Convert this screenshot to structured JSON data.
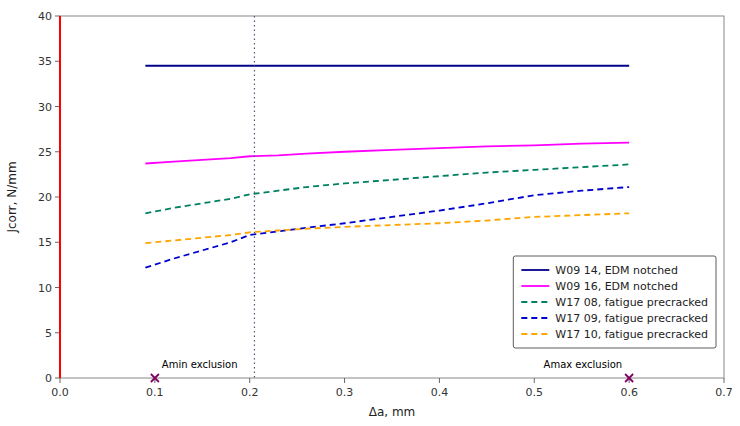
{
  "chart_data": {
    "type": "line",
    "xlabel": "Δa, mm",
    "ylabel": "Jcorr, N/mm",
    "xlim": [
      0,
      0.7
    ],
    "ylim": [
      0,
      40
    ],
    "xticks": [
      {
        "value": 0,
        "label": "0.0"
      },
      0.1,
      0.2,
      0.3,
      0.4,
      0.5,
      0.6,
      0.7
    ],
    "yticks": [
      0,
      5,
      10,
      15,
      20,
      25,
      30,
      35,
      40
    ],
    "grid": false,
    "legend": "lower right",
    "series": [
      {
        "name": "W09 14, EDM notched",
        "color": "#00008B",
        "line_style": "solid",
        "x": [
          0.09,
          0.15,
          0.2,
          0.25,
          0.3,
          0.35,
          0.4,
          0.45,
          0.5,
          0.55,
          0.6
        ],
        "values": [
          34.5,
          34.5,
          34.5,
          34.5,
          34.5,
          34.5,
          34.5,
          34.5,
          34.5,
          34.5,
          34.5
        ]
      },
      {
        "name": "W09 16, EDM notched",
        "color": "#FF00FF",
        "line_style": "solid",
        "x": [
          0.09,
          0.12,
          0.15,
          0.18,
          0.2,
          0.23,
          0.26,
          0.3,
          0.35,
          0.4,
          0.45,
          0.5,
          0.55,
          0.6
        ],
        "values": [
          23.7,
          23.9,
          24.1,
          24.3,
          24.5,
          24.6,
          24.8,
          25.0,
          25.2,
          25.4,
          25.6,
          25.7,
          25.9,
          26.0
        ]
      },
      {
        "name": "W17 08, fatigue precracked",
        "color": "#008060",
        "line_style": "dashed",
        "x": [
          0.09,
          0.12,
          0.15,
          0.18,
          0.2,
          0.23,
          0.26,
          0.3,
          0.35,
          0.4,
          0.45,
          0.5,
          0.55,
          0.6
        ],
        "values": [
          18.2,
          18.8,
          19.3,
          19.8,
          20.3,
          20.7,
          21.1,
          21.5,
          21.9,
          22.3,
          22.7,
          23.0,
          23.3,
          23.6
        ]
      },
      {
        "name": "W17 09, fatigue precracked",
        "color": "#0000CD",
        "line_style": "dashed",
        "x": [
          0.09,
          0.12,
          0.15,
          0.18,
          0.2,
          0.23,
          0.26,
          0.3,
          0.35,
          0.4,
          0.45,
          0.5,
          0.55,
          0.6
        ],
        "values": [
          12.2,
          13.2,
          14.1,
          15.0,
          15.8,
          16.2,
          16.6,
          17.1,
          17.8,
          18.5,
          19.3,
          20.2,
          20.7,
          21.1
        ]
      },
      {
        "name": "W17 10, fatigue precracked",
        "color": "#FFA500",
        "line_style": "dashed",
        "x": [
          0.09,
          0.12,
          0.15,
          0.18,
          0.2,
          0.23,
          0.26,
          0.3,
          0.35,
          0.4,
          0.45,
          0.5,
          0.55,
          0.6
        ],
        "values": [
          14.9,
          15.2,
          15.5,
          15.8,
          16.1,
          16.3,
          16.5,
          16.7,
          16.9,
          17.1,
          17.4,
          17.8,
          18.0,
          18.2
        ]
      }
    ],
    "vertical_lines": [
      {
        "x": 0.0,
        "color": "#FF0000",
        "line_style": "solid"
      },
      {
        "x": 0.205,
        "color": "#555577",
        "line_style": "dotted"
      }
    ],
    "annotations": [
      {
        "text": "Amin exclusion",
        "x": 0.1,
        "marker": "x",
        "color": "#800060"
      },
      {
        "text": "Amax exclusion",
        "x": 0.6,
        "marker": "x",
        "color": "#800060"
      }
    ]
  }
}
